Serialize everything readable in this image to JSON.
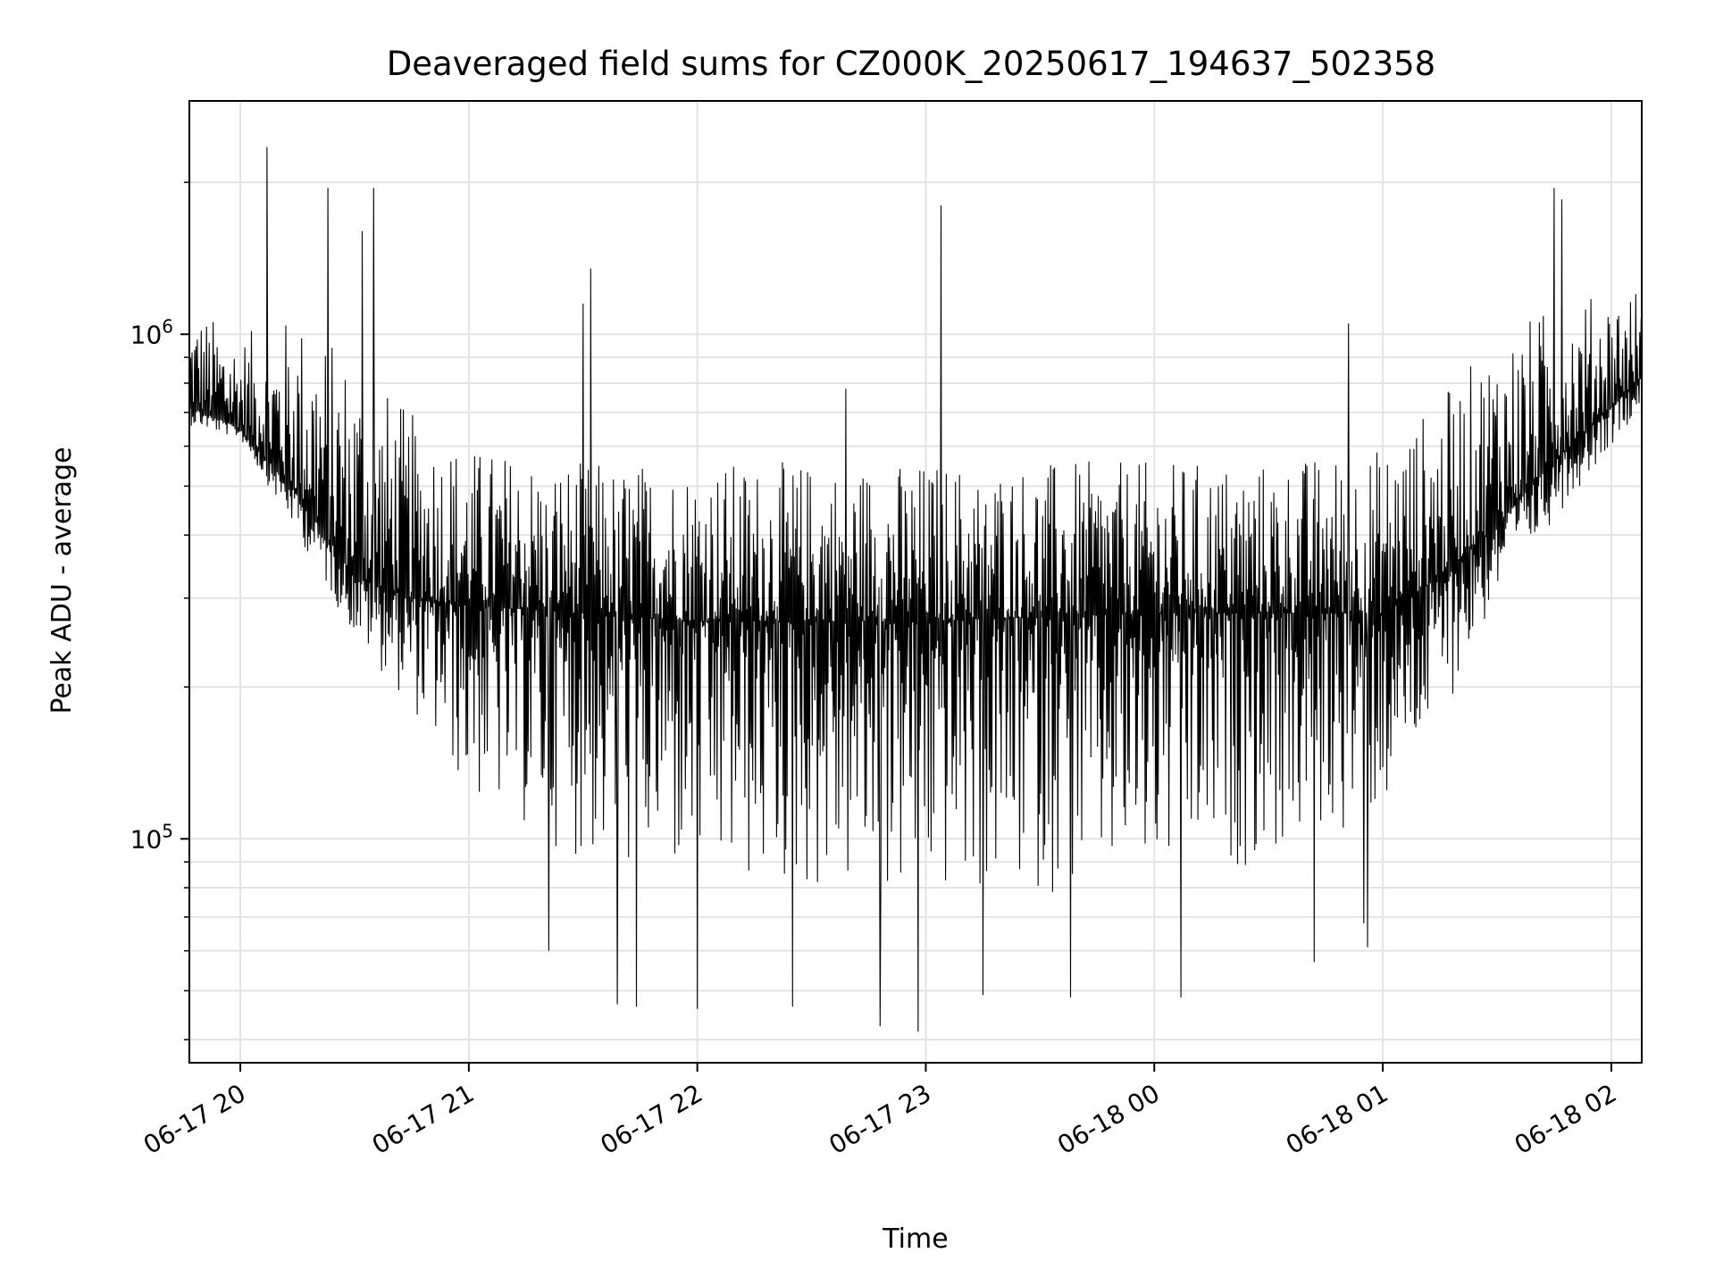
{
  "chart_data": {
    "type": "line",
    "title": "Deaveraged field sums for CZ000K_20250617_194637_502358",
    "xlabel": "Time",
    "ylabel": "Peak ADU - average",
    "yscale": "log",
    "ylim": [
      36000,
      2900000
    ],
    "xlim": [
      "2025-06-17 19:46:37",
      "2025-06-18 02:08:00"
    ],
    "grid": true,
    "line_color": "#000000",
    "x_ticks": [
      {
        "value": "2025-06-17 20:00",
        "label": "06-17 20"
      },
      {
        "value": "2025-06-17 21:00",
        "label": "06-17 21"
      },
      {
        "value": "2025-06-17 22:00",
        "label": "06-17 22"
      },
      {
        "value": "2025-06-17 23:00",
        "label": "06-17 23"
      },
      {
        "value": "2025-06-18 00:00",
        "label": "06-18 00"
      },
      {
        "value": "2025-06-18 01:00",
        "label": "06-18 01"
      },
      {
        "value": "2025-06-18 02:00",
        "label": "06-18 02"
      }
    ],
    "y_ticks": [
      {
        "value": 100000,
        "base": "10",
        "exp": "5"
      },
      {
        "value": 1000000,
        "base": "10",
        "exp": "6"
      }
    ],
    "series": [
      {
        "envelope": [
          {
            "x": "2025-06-17 19:46:37",
            "low": 660000,
            "base": 720000,
            "high": 1150000
          },
          {
            "x": "2025-06-17 20:00",
            "low": 620000,
            "base": 650000,
            "high": 1000000
          },
          {
            "x": "2025-06-17 20:15",
            "low": 400000,
            "base": 480000,
            "high": 1100000
          },
          {
            "x": "2025-06-17 20:30",
            "low": 250000,
            "base": 330000,
            "high": 900000
          },
          {
            "x": "2025-06-17 20:45",
            "low": 180000,
            "base": 300000,
            "high": 700000
          },
          {
            "x": "2025-06-17 21:00",
            "low": 120000,
            "base": 290000,
            "high": 600000
          },
          {
            "x": "2025-06-17 21:30",
            "low": 90000,
            "base": 280000,
            "high": 560000
          },
          {
            "x": "2025-06-17 22:00",
            "low": 80000,
            "base": 270000,
            "high": 560000
          },
          {
            "x": "2025-06-17 23:00",
            "low": 75000,
            "base": 270000,
            "high": 560000
          },
          {
            "x": "2025-06-18 00:00",
            "low": 80000,
            "base": 280000,
            "high": 560000
          },
          {
            "x": "2025-06-18 00:30",
            "low": 90000,
            "base": 280000,
            "high": 560000
          },
          {
            "x": "2025-06-18 01:00",
            "low": 110000,
            "base": 280000,
            "high": 600000
          },
          {
            "x": "2025-06-18 01:15",
            "low": 170000,
            "base": 330000,
            "high": 750000
          },
          {
            "x": "2025-06-18 01:30",
            "low": 300000,
            "base": 420000,
            "high": 1000000
          },
          {
            "x": "2025-06-18 01:45",
            "low": 430000,
            "base": 560000,
            "high": 1150000
          },
          {
            "x": "2025-06-18 02:08",
            "low": 720000,
            "base": 820000,
            "high": 1250000
          }
        ],
        "spikes_high": [
          {
            "x": "2025-06-17 20:07",
            "y": 2350000
          },
          {
            "x": "2025-06-17 20:23",
            "y": 1950000
          },
          {
            "x": "2025-06-17 20:35",
            "y": 1950000
          },
          {
            "x": "2025-06-17 20:32",
            "y": 1600000
          },
          {
            "x": "2025-06-17 21:30",
            "y": 1150000
          },
          {
            "x": "2025-06-17 21:32",
            "y": 1350000
          },
          {
            "x": "2025-06-17 22:39",
            "y": 780000
          },
          {
            "x": "2025-06-17 23:04",
            "y": 1800000
          },
          {
            "x": "2025-06-18 00:51",
            "y": 1050000
          },
          {
            "x": "2025-06-18 01:45",
            "y": 1950000
          },
          {
            "x": "2025-06-18 01:47",
            "y": 1850000
          }
        ],
        "spikes_low": [
          {
            "x": "2025-06-17 21:21",
            "y": 60000
          },
          {
            "x": "2025-06-17 21:39",
            "y": 47000
          },
          {
            "x": "2025-06-17 21:44",
            "y": 46500
          },
          {
            "x": "2025-06-17 22:00",
            "y": 46000
          },
          {
            "x": "2025-06-17 22:25",
            "y": 46500
          },
          {
            "x": "2025-06-17 22:48",
            "y": 42500
          },
          {
            "x": "2025-06-17 22:58",
            "y": 41500
          },
          {
            "x": "2025-06-17 23:15",
            "y": 49000
          },
          {
            "x": "2025-06-17 23:38",
            "y": 48500
          },
          {
            "x": "2025-06-18 00:07",
            "y": 48500
          },
          {
            "x": "2025-06-18 00:42",
            "y": 57000
          },
          {
            "x": "2025-06-18 00:55",
            "y": 68000
          },
          {
            "x": "2025-06-18 00:56",
            "y": 61000
          }
        ]
      }
    ]
  }
}
